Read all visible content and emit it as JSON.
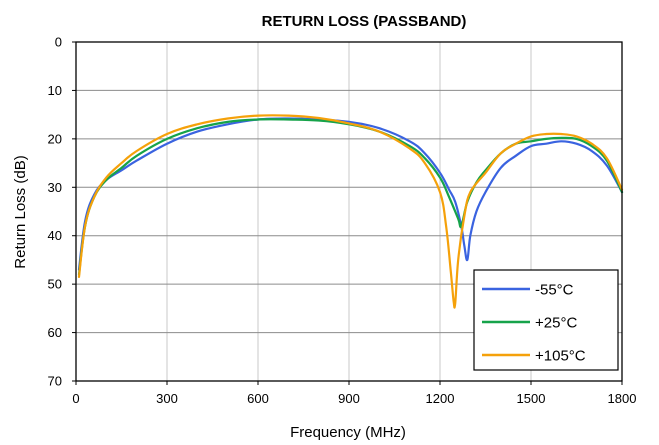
{
  "chart_data": {
    "type": "line",
    "title": "RETURN LOSS (PASSBAND)",
    "xlabel": "Frequency (MHz)",
    "ylabel": "Return Loss (dB)",
    "xlim": [
      0,
      1800
    ],
    "ylim": [
      0,
      70
    ],
    "y_inverted": true,
    "x_ticks": [
      "0",
      "300",
      "600",
      "900",
      "1200",
      "1500",
      "1800"
    ],
    "y_ticks": [
      "0",
      "10",
      "20",
      "30",
      "40",
      "50",
      "60",
      "70"
    ],
    "grid": "both",
    "legend_position": "bottom-right",
    "series": [
      {
        "name": "-55°C",
        "color": "#3a63e0",
        "x": [
          10,
          30,
          60,
          100,
          150,
          200,
          300,
          400,
          500,
          600,
          700,
          800,
          900,
          1000,
          1100,
          1150,
          1200,
          1230,
          1250,
          1270,
          1280,
          1290,
          1300,
          1320,
          1350,
          1400,
          1450,
          1500,
          1550,
          1600,
          1650,
          1700,
          1750,
          1800
        ],
        "y": [
          47,
          37,
          31.5,
          28.5,
          26.5,
          24.5,
          21,
          18.5,
          17,
          16,
          15.8,
          16,
          16.5,
          17.8,
          20.5,
          23,
          27,
          30.5,
          33,
          38,
          42,
          45,
          40,
          35,
          31,
          26,
          23.5,
          21.5,
          21,
          20.5,
          21,
          22.5,
          25.5,
          31
        ]
      },
      {
        "name": "+25°C",
        "color": "#16a34a",
        "x": [
          10,
          30,
          60,
          100,
          150,
          200,
          300,
          400,
          500,
          600,
          700,
          800,
          900,
          1000,
          1100,
          1150,
          1200,
          1230,
          1260,
          1270,
          1290,
          1320,
          1350,
          1400,
          1450,
          1500,
          1550,
          1600,
          1650,
          1700,
          1750,
          1800
        ],
        "y": [
          48,
          38,
          32,
          28.5,
          26,
          23.5,
          20,
          17.8,
          16.5,
          16,
          16,
          16.2,
          17,
          18.5,
          21.5,
          24,
          28,
          32,
          36.5,
          38,
          33,
          29,
          26.5,
          23,
          21,
          20.5,
          20,
          19.8,
          20,
          21.5,
          24.5,
          31
        ]
      },
      {
        "name": "+105°C",
        "color": "#f5a10a",
        "x": [
          10,
          30,
          60,
          100,
          150,
          200,
          300,
          400,
          500,
          600,
          700,
          800,
          900,
          1000,
          1100,
          1150,
          1200,
          1220,
          1235,
          1245,
          1250,
          1260,
          1280,
          1300,
          1350,
          1400,
          1450,
          1500,
          1550,
          1600,
          1650,
          1700,
          1750,
          1800
        ],
        "y": [
          48.5,
          38,
          32,
          28,
          25,
          22.5,
          19,
          17,
          15.8,
          15.2,
          15.2,
          15.7,
          16.8,
          18.5,
          22,
          25,
          31,
          38,
          47,
          53.5,
          54,
          45,
          36,
          31,
          27,
          23,
          21,
          19.5,
          19,
          19,
          19.5,
          21,
          24,
          30.5
        ]
      }
    ]
  }
}
